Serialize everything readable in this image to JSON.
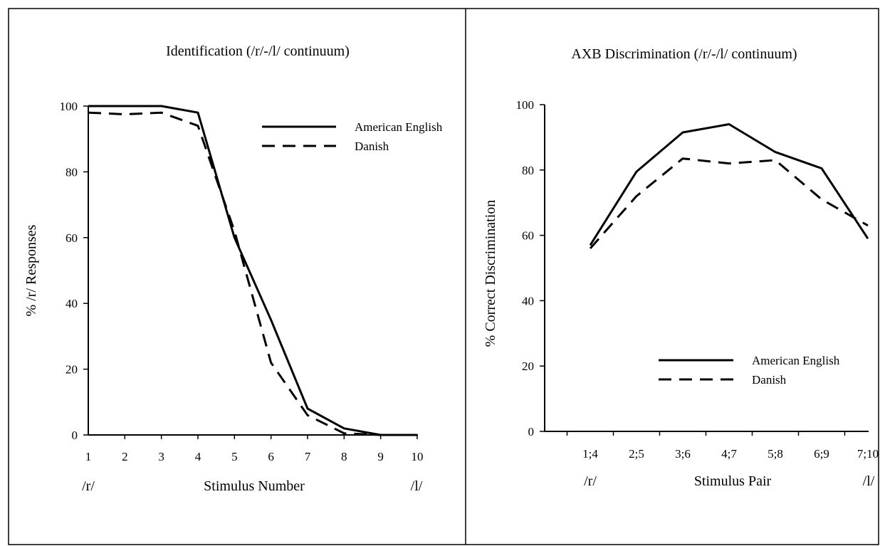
{
  "chart_data": [
    {
      "type": "line",
      "title": "Identification (/r/-/l/ continuum)",
      "xlabel": "Stimulus Number",
      "ylabel": "% /r/ Responses",
      "x_end_labels": [
        "/r/",
        "/l/"
      ],
      "categories": [
        "1",
        "2",
        "3",
        "4",
        "5",
        "6",
        "7",
        "8",
        "9",
        "10"
      ],
      "ylim": [
        0,
        100
      ],
      "yticks": [
        "0",
        "20",
        "40",
        "60",
        "80",
        "100"
      ],
      "grid": false,
      "legend_position": "top-right",
      "series": [
        {
          "name": "American English",
          "style": "solid",
          "values": [
            100,
            100,
            100,
            98,
            60,
            35,
            8,
            2,
            0,
            0
          ]
        },
        {
          "name": "Danish",
          "style": "dashed",
          "values": [
            98,
            97.5,
            98,
            94,
            62,
            22,
            6,
            0.5,
            0,
            0
          ]
        }
      ]
    },
    {
      "type": "line",
      "title": "AXB Discrimination (/r/-/l/ continuum)",
      "xlabel": "Stimulus Pair",
      "ylabel": "% Correct Discrimination",
      "x_end_labels": [
        "/r/",
        "/l/"
      ],
      "categories": [
        "1;4",
        "2;5",
        "3;6",
        "4;7",
        "5;8",
        "6;9",
        "7;10"
      ],
      "ylim": [
        0,
        100
      ],
      "yticks": [
        "0",
        "20",
        "40",
        "60",
        "80",
        "100"
      ],
      "grid": false,
      "legend_position": "bottom-right",
      "series": [
        {
          "name": "American English",
          "style": "solid",
          "values": [
            57,
            79.5,
            91.5,
            94,
            85.5,
            80.5,
            59
          ]
        },
        {
          "name": "Danish",
          "style": "dashed",
          "values": [
            56,
            72,
            83.5,
            82,
            83,
            71,
            63
          ]
        }
      ]
    }
  ]
}
